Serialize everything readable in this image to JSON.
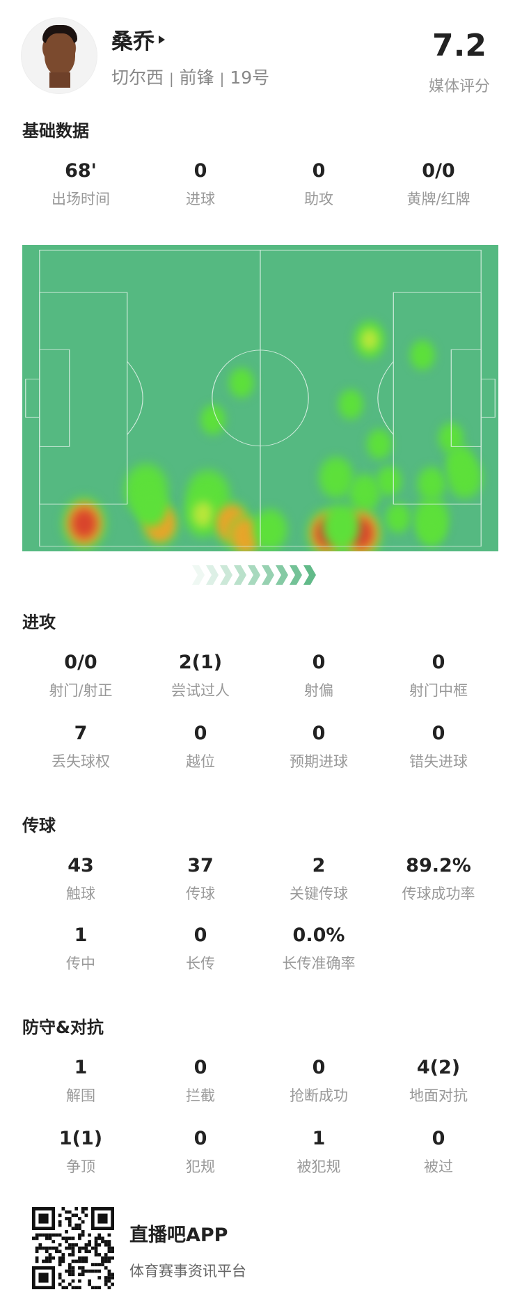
{
  "player": {
    "name": "桑乔",
    "team": "切尔西",
    "position": "前锋",
    "number": "19号",
    "separator": "|",
    "rating": "7.2",
    "rating_label": "媒体评分"
  },
  "basic": {
    "title": "基础数据",
    "stats": [
      {
        "value": "68'",
        "label": "出场时间"
      },
      {
        "value": "0",
        "label": "进球"
      },
      {
        "value": "0",
        "label": "助攻"
      },
      {
        "value": "0/0",
        "label": "黄牌/红牌"
      }
    ]
  },
  "heatmap": {
    "colors": {
      "pitch": "#55b981",
      "lines": "#e6f4ec",
      "hot": "#d9442c",
      "warm": "#e7a52a",
      "mid": "#b8e63a",
      "cool": "#5de03a"
    },
    "attack_direction": "right"
  },
  "attack": {
    "title": "进攻",
    "stats": [
      {
        "value": "0/0",
        "label": "射门/射正"
      },
      {
        "value": "2(1)",
        "label": "尝试过人"
      },
      {
        "value": "0",
        "label": "射偏"
      },
      {
        "value": "0",
        "label": "射门中框"
      },
      {
        "value": "7",
        "label": "丢失球权"
      },
      {
        "value": "0",
        "label": "越位"
      },
      {
        "value": "0",
        "label": "预期进球"
      },
      {
        "value": "0",
        "label": "错失进球"
      }
    ]
  },
  "passing": {
    "title": "传球",
    "stats": [
      {
        "value": "43",
        "label": "触球"
      },
      {
        "value": "37",
        "label": "传球"
      },
      {
        "value": "2",
        "label": "关键传球"
      },
      {
        "value": "89.2%",
        "label": "传球成功率"
      },
      {
        "value": "1",
        "label": "传中"
      },
      {
        "value": "0",
        "label": "长传"
      },
      {
        "value": "0.0%",
        "label": "长传准确率"
      }
    ]
  },
  "defense": {
    "title": "防守&对抗",
    "stats": [
      {
        "value": "1",
        "label": "解围"
      },
      {
        "value": "0",
        "label": "拦截"
      },
      {
        "value": "0",
        "label": "抢断成功"
      },
      {
        "value": "4(2)",
        "label": "地面对抗"
      },
      {
        "value": "1(1)",
        "label": "争顶"
      },
      {
        "value": "0",
        "label": "犯规"
      },
      {
        "value": "1",
        "label": "被犯规"
      },
      {
        "value": "0",
        "label": "被过"
      }
    ]
  },
  "footer": {
    "app_name": "直播吧APP",
    "slogan": "体育赛事资讯平台"
  }
}
